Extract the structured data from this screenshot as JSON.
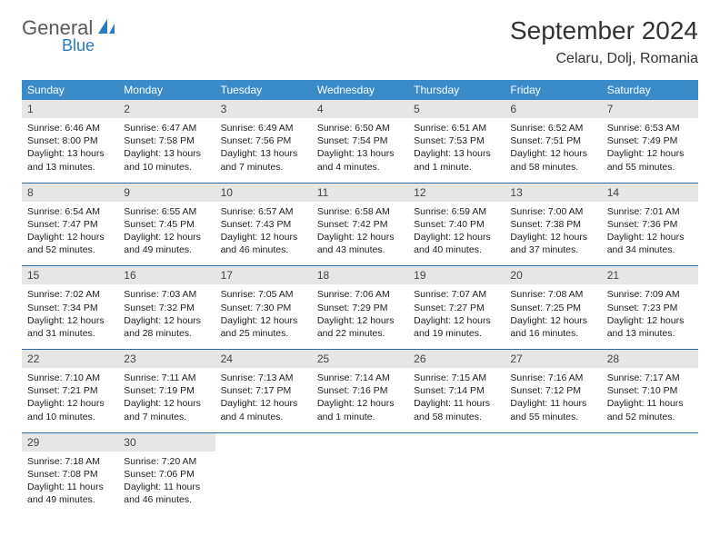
{
  "logo": {
    "general": "General",
    "blue": "Blue"
  },
  "title": "September 2024",
  "location": "Celaru, Dolj, Romania",
  "colors": {
    "header_bg": "#3b8bc9",
    "header_text": "#ffffff",
    "daynum_bg": "#e6e6e6",
    "week_border": "#2a6aa0",
    "text": "#222222",
    "title_color": "#333333"
  },
  "dayNames": [
    "Sunday",
    "Monday",
    "Tuesday",
    "Wednesday",
    "Thursday",
    "Friday",
    "Saturday"
  ],
  "weeks": [
    [
      {
        "n": "1",
        "sunrise": "Sunrise: 6:46 AM",
        "sunset": "Sunset: 8:00 PM",
        "day": "Daylight: 13 hours and 13 minutes."
      },
      {
        "n": "2",
        "sunrise": "Sunrise: 6:47 AM",
        "sunset": "Sunset: 7:58 PM",
        "day": "Daylight: 13 hours and 10 minutes."
      },
      {
        "n": "3",
        "sunrise": "Sunrise: 6:49 AM",
        "sunset": "Sunset: 7:56 PM",
        "day": "Daylight: 13 hours and 7 minutes."
      },
      {
        "n": "4",
        "sunrise": "Sunrise: 6:50 AM",
        "sunset": "Sunset: 7:54 PM",
        "day": "Daylight: 13 hours and 4 minutes."
      },
      {
        "n": "5",
        "sunrise": "Sunrise: 6:51 AM",
        "sunset": "Sunset: 7:53 PM",
        "day": "Daylight: 13 hours and 1 minute."
      },
      {
        "n": "6",
        "sunrise": "Sunrise: 6:52 AM",
        "sunset": "Sunset: 7:51 PM",
        "day": "Daylight: 12 hours and 58 minutes."
      },
      {
        "n": "7",
        "sunrise": "Sunrise: 6:53 AM",
        "sunset": "Sunset: 7:49 PM",
        "day": "Daylight: 12 hours and 55 minutes."
      }
    ],
    [
      {
        "n": "8",
        "sunrise": "Sunrise: 6:54 AM",
        "sunset": "Sunset: 7:47 PM",
        "day": "Daylight: 12 hours and 52 minutes."
      },
      {
        "n": "9",
        "sunrise": "Sunrise: 6:55 AM",
        "sunset": "Sunset: 7:45 PM",
        "day": "Daylight: 12 hours and 49 minutes."
      },
      {
        "n": "10",
        "sunrise": "Sunrise: 6:57 AM",
        "sunset": "Sunset: 7:43 PM",
        "day": "Daylight: 12 hours and 46 minutes."
      },
      {
        "n": "11",
        "sunrise": "Sunrise: 6:58 AM",
        "sunset": "Sunset: 7:42 PM",
        "day": "Daylight: 12 hours and 43 minutes."
      },
      {
        "n": "12",
        "sunrise": "Sunrise: 6:59 AM",
        "sunset": "Sunset: 7:40 PM",
        "day": "Daylight: 12 hours and 40 minutes."
      },
      {
        "n": "13",
        "sunrise": "Sunrise: 7:00 AM",
        "sunset": "Sunset: 7:38 PM",
        "day": "Daylight: 12 hours and 37 minutes."
      },
      {
        "n": "14",
        "sunrise": "Sunrise: 7:01 AM",
        "sunset": "Sunset: 7:36 PM",
        "day": "Daylight: 12 hours and 34 minutes."
      }
    ],
    [
      {
        "n": "15",
        "sunrise": "Sunrise: 7:02 AM",
        "sunset": "Sunset: 7:34 PM",
        "day": "Daylight: 12 hours and 31 minutes."
      },
      {
        "n": "16",
        "sunrise": "Sunrise: 7:03 AM",
        "sunset": "Sunset: 7:32 PM",
        "day": "Daylight: 12 hours and 28 minutes."
      },
      {
        "n": "17",
        "sunrise": "Sunrise: 7:05 AM",
        "sunset": "Sunset: 7:30 PM",
        "day": "Daylight: 12 hours and 25 minutes."
      },
      {
        "n": "18",
        "sunrise": "Sunrise: 7:06 AM",
        "sunset": "Sunset: 7:29 PM",
        "day": "Daylight: 12 hours and 22 minutes."
      },
      {
        "n": "19",
        "sunrise": "Sunrise: 7:07 AM",
        "sunset": "Sunset: 7:27 PM",
        "day": "Daylight: 12 hours and 19 minutes."
      },
      {
        "n": "20",
        "sunrise": "Sunrise: 7:08 AM",
        "sunset": "Sunset: 7:25 PM",
        "day": "Daylight: 12 hours and 16 minutes."
      },
      {
        "n": "21",
        "sunrise": "Sunrise: 7:09 AM",
        "sunset": "Sunset: 7:23 PM",
        "day": "Daylight: 12 hours and 13 minutes."
      }
    ],
    [
      {
        "n": "22",
        "sunrise": "Sunrise: 7:10 AM",
        "sunset": "Sunset: 7:21 PM",
        "day": "Daylight: 12 hours and 10 minutes."
      },
      {
        "n": "23",
        "sunrise": "Sunrise: 7:11 AM",
        "sunset": "Sunset: 7:19 PM",
        "day": "Daylight: 12 hours and 7 minutes."
      },
      {
        "n": "24",
        "sunrise": "Sunrise: 7:13 AM",
        "sunset": "Sunset: 7:17 PM",
        "day": "Daylight: 12 hours and 4 minutes."
      },
      {
        "n": "25",
        "sunrise": "Sunrise: 7:14 AM",
        "sunset": "Sunset: 7:16 PM",
        "day": "Daylight: 12 hours and 1 minute."
      },
      {
        "n": "26",
        "sunrise": "Sunrise: 7:15 AM",
        "sunset": "Sunset: 7:14 PM",
        "day": "Daylight: 11 hours and 58 minutes."
      },
      {
        "n": "27",
        "sunrise": "Sunrise: 7:16 AM",
        "sunset": "Sunset: 7:12 PM",
        "day": "Daylight: 11 hours and 55 minutes."
      },
      {
        "n": "28",
        "sunrise": "Sunrise: 7:17 AM",
        "sunset": "Sunset: 7:10 PM",
        "day": "Daylight: 11 hours and 52 minutes."
      }
    ],
    [
      {
        "n": "29",
        "sunrise": "Sunrise: 7:18 AM",
        "sunset": "Sunset: 7:08 PM",
        "day": "Daylight: 11 hours and 49 minutes."
      },
      {
        "n": "30",
        "sunrise": "Sunrise: 7:20 AM",
        "sunset": "Sunset: 7:06 PM",
        "day": "Daylight: 11 hours and 46 minutes."
      },
      {
        "empty": true
      },
      {
        "empty": true
      },
      {
        "empty": true
      },
      {
        "empty": true
      },
      {
        "empty": true
      }
    ]
  ]
}
